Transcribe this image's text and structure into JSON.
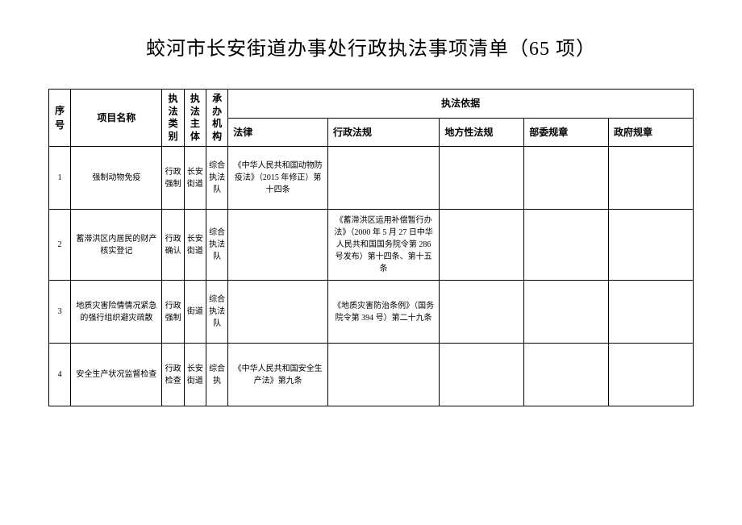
{
  "title": "蛟河市长安街道办事处行政执法事项清单（65 项）",
  "headers": {
    "seq": "序号",
    "name": "项目名称",
    "category": "执法类别",
    "body": "执法主体",
    "org": "承办机构",
    "basis": "执法依据",
    "law": "法律",
    "admin_reg": "行政法规",
    "local_reg": "地方性法规",
    "ministry_reg": "部委规章",
    "gov_reg": "政府规章"
  },
  "rows": [
    {
      "seq": "1",
      "name": "强制动物免疫",
      "category": "行政强制",
      "body": "长安街道",
      "org": "综合执法队",
      "law": "《中华人民共和国动物防疫法》（2015 年修正）第十四条",
      "admin_reg": "",
      "local_reg": "",
      "ministry_reg": "",
      "gov_reg": ""
    },
    {
      "seq": "2",
      "name": "蓄滞洪区内居民的财产核实登记",
      "category": "行政确认",
      "body": "长安街道",
      "org": "综合执法队",
      "law": "",
      "admin_reg": "《蓄滞洪区运用补偿暂行办法》（2000 年 5 月 27 日中华人民共和国国务院令第 286 号发布）第十四条、第十五条",
      "local_reg": "",
      "ministry_reg": "",
      "gov_reg": ""
    },
    {
      "seq": "3",
      "name": "地质灾害险情情况紧急的强行组织避灾疏散",
      "category": "行政强制",
      "body": "街道",
      "org": "综合执法队",
      "law": "",
      "admin_reg": "《地质灾害防治条例》（国务院令第 394 号）第二十九条",
      "local_reg": "",
      "ministry_reg": "",
      "gov_reg": ""
    },
    {
      "seq": "4",
      "name": "安全生产状况监督检查",
      "category": "行政检查",
      "body": "长安街道",
      "org": "综合执",
      "law": "《中华人民共和国安全生产法》第九条",
      "admin_reg": "",
      "local_reg": "",
      "ministry_reg": "",
      "gov_reg": ""
    }
  ],
  "style": {
    "background_color": "#ffffff",
    "border_color": "#000000",
    "title_fontsize": 24,
    "header_fontsize": 12,
    "cell_fontsize": 10
  }
}
